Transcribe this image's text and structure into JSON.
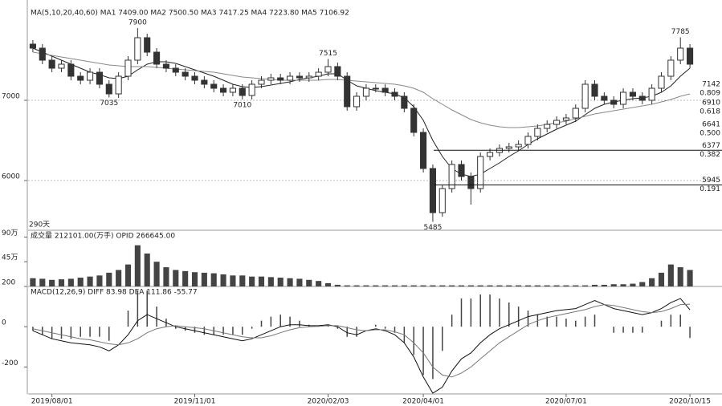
{
  "chart_data": [
    {
      "type": "candlestick",
      "title": "MA(5,10,20,40,60)  MA1 7409.00  MA2 7500.50  MA3 7417.25  MA4 7223.80  MA5 7106.92",
      "subtitle": "290天",
      "open": [
        7700,
        7650,
        7500,
        7400,
        7450,
        7300,
        7250,
        7350,
        7200,
        7080,
        7300,
        7500,
        7780,
        7600,
        7450,
        7400,
        7350,
        7300,
        7250,
        7200,
        7150,
        7100,
        7150,
        7060,
        7200,
        7250,
        7280,
        7250,
        7300,
        7280,
        7300,
        7350,
        7420,
        7300,
        6920,
        7050,
        7150,
        7150,
        7100,
        7050,
        6900,
        6600,
        6150,
        5600,
        5900,
        6200,
        6050,
        5900,
        6300,
        6350,
        6400,
        6420,
        6450,
        6550,
        6650,
        6700,
        6750,
        6780,
        6900,
        7200,
        7050,
        7000,
        6950,
        7100,
        7050,
        7000,
        7150,
        7300,
        7500,
        7650
      ],
      "high": [
        7750,
        7700,
        7550,
        7500,
        7500,
        7350,
        7400,
        7400,
        7250,
        7350,
        7550,
        7900,
        7830,
        7650,
        7500,
        7450,
        7400,
        7350,
        7300,
        7250,
        7200,
        7200,
        7200,
        7250,
        7300,
        7330,
        7330,
        7350,
        7350,
        7350,
        7400,
        7515,
        7470,
        7350,
        7100,
        7200,
        7200,
        7200,
        7150,
        7100,
        6950,
        6650,
        6200,
        5950,
        6250,
        6250,
        6100,
        6350,
        6400,
        6450,
        6470,
        6500,
        6600,
        6700,
        6750,
        6800,
        6830,
        6950,
        7250,
        7250,
        7100,
        7050,
        7150,
        7150,
        7100,
        7200,
        7350,
        7550,
        7785,
        7700
      ],
      "low": [
        7600,
        7450,
        7350,
        7350,
        7250,
        7200,
        7200,
        7150,
        7035,
        7030,
        7250,
        7450,
        7550,
        7400,
        7350,
        7300,
        7250,
        7200,
        7150,
        7100,
        7050,
        7050,
        7010,
        7010,
        7150,
        7200,
        7200,
        7200,
        7230,
        7230,
        7250,
        7300,
        7250,
        6870,
        6870,
        7000,
        7100,
        7050,
        7000,
        6850,
        6550,
        6100,
        5485,
        5550,
        5850,
        6000,
        5700,
        5850,
        6250,
        6300,
        6350,
        6370,
        6400,
        6500,
        6600,
        6650,
        6700,
        6730,
        6850,
        7000,
        6950,
        6900,
        6900,
        7000,
        6950,
        6950,
        7100,
        7250,
        7450,
        7400
      ],
      "close": [
        7650,
        7500,
        7400,
        7450,
        7300,
        7250,
        7350,
        7200,
        7080,
        7300,
        7500,
        7780,
        7600,
        7450,
        7400,
        7350,
        7300,
        7250,
        7200,
        7150,
        7100,
        7150,
        7060,
        7200,
        7250,
        7280,
        7250,
        7300,
        7280,
        7300,
        7350,
        7420,
        7300,
        6920,
        7050,
        7150,
        7150,
        7100,
        7050,
        6900,
        6600,
        6150,
        5600,
        5900,
        6200,
        6050,
        5900,
        6300,
        6350,
        6400,
        6420,
        6450,
        6550,
        6650,
        6700,
        6750,
        6780,
        6900,
        7200,
        7050,
        7000,
        6950,
        7100,
        7050,
        7000,
        7150,
        7300,
        7500,
        7650,
        7450
      ],
      "up_color": "#333333",
      "down_color": "#333333",
      "series": [
        {
          "color": "#222222",
          "values": [
            7650,
            7600,
            7550,
            7500,
            7450,
            7400,
            7350,
            7320,
            7280,
            7270,
            7300,
            7380,
            7450,
            7480,
            7480,
            7460,
            7420,
            7380,
            7340,
            7300,
            7250,
            7200,
            7170,
            7160,
            7170,
            7190,
            7210,
            7230,
            7260,
            7280,
            7300,
            7330,
            7330,
            7250,
            7180,
            7150,
            7120,
            7100,
            7080,
            7030,
            6920,
            6750,
            6500,
            6300,
            6150,
            6080,
            6050,
            6080,
            6150,
            6220,
            6300,
            6370,
            6450,
            6520,
            6580,
            6640,
            6690,
            6740,
            6820,
            6900,
            6950,
            6980,
            7000,
            7020,
            7030,
            7050,
            7100,
            7180,
            7300,
            7400
          ]
        },
        {
          "color": "#888888",
          "values": [
            7600,
            7580,
            7560,
            7540,
            7520,
            7500,
            7480,
            7460,
            7440,
            7430,
            7420,
            7420,
            7420,
            7410,
            7400,
            7390,
            7380,
            7370,
            7360,
            7350,
            7330,
            7310,
            7290,
            7280,
            7270,
            7260,
            7250,
            7250,
            7250,
            7250,
            7250,
            7260,
            7260,
            7250,
            7240,
            7230,
            7220,
            7210,
            7200,
            7180,
            7150,
            7100,
            7020,
            6950,
            6880,
            6820,
            6760,
            6720,
            6690,
            6670,
            6660,
            6660,
            6670,
            6680,
            6700,
            6720,
            6740,
            6770,
            6800,
            6830,
            6850,
            6870,
            6890,
            6910,
            6930,
            6950,
            6980,
            7010,
            7050,
            7080
          ]
        }
      ],
      "annotations": [
        {
          "x": 11,
          "value": 7900
        },
        {
          "x": 8,
          "value": 7035
        },
        {
          "x": 22,
          "value": 7010
        },
        {
          "x": 31,
          "value": 7515
        },
        {
          "x": 42,
          "value": 5485
        },
        {
          "x": 68,
          "value": 7785
        }
      ],
      "levels": [
        {
          "price": 7142,
          "ratio": "0.809"
        },
        {
          "price": 6910,
          "ratio": "0.618"
        },
        {
          "price": 6641,
          "ratio": "0.500"
        },
        {
          "price": 6377,
          "ratio": "0.382"
        },
        {
          "price": 5945,
          "ratio": "0.191"
        }
      ],
      "ylim": [
        5400,
        8150
      ],
      "yticks": [
        6000,
        7000
      ],
      "grid": true
    },
    {
      "type": "bar",
      "title": "成交量 212101.00(万手)  OPID 266645.00",
      "values": [
        15,
        14,
        12,
        13,
        14,
        16,
        18,
        20,
        25,
        30,
        40,
        75,
        60,
        45,
        35,
        30,
        28,
        26,
        25,
        24,
        22,
        20,
        20,
        18,
        18,
        17,
        16,
        15,
        14,
        12,
        10,
        6,
        3,
        2,
        2,
        2,
        2,
        2,
        2,
        2,
        2,
        2,
        2,
        2,
        2,
        2,
        2,
        2,
        2,
        2,
        2,
        2,
        2,
        2,
        2,
        2,
        2,
        2,
        2,
        3,
        3,
        4,
        4,
        5,
        8,
        15,
        25,
        40,
        35,
        30
      ],
      "color": "#444444",
      "ylim": [
        0,
        95
      ],
      "yticks": [
        {
          "value": 45,
          "label": "45万"
        },
        {
          "value": 90,
          "label": "90万"
        }
      ]
    },
    {
      "type": "macd",
      "title": "MACD(12,26,9)  DIFF 83.98  DEA 111.86  -55.77",
      "categories": [
        null,
        null,
        "2019/08/01",
        null,
        null,
        null,
        null,
        null,
        null,
        null,
        null,
        null,
        null,
        null,
        null,
        null,
        null,
        "2019/11/01",
        null,
        null,
        null,
        null,
        null,
        null,
        null,
        null,
        null,
        null,
        null,
        null,
        null,
        "2020/02/03",
        null,
        null,
        null,
        null,
        null,
        null,
        null,
        null,
        null,
        "2020/04/01",
        null,
        null,
        null,
        null,
        null,
        null,
        null,
        null,
        null,
        null,
        null,
        null,
        null,
        null,
        "2020/07/01",
        null,
        null,
        null,
        null,
        null,
        null,
        null,
        null,
        null,
        null,
        null,
        null,
        "2020/10/15"
      ],
      "values": [
        -20,
        -40,
        -60,
        -60,
        -60,
        -50,
        -50,
        -50,
        -70,
        0,
        80,
        180,
        180,
        100,
        40,
        -10,
        -20,
        -30,
        -40,
        -40,
        -40,
        -40,
        -40,
        -10,
        30,
        50,
        60,
        50,
        30,
        10,
        6,
        10,
        -10,
        -50,
        -50,
        0,
        10,
        -10,
        -30,
        -80,
        -140,
        -240,
        -260,
        -120,
        60,
        140,
        140,
        160,
        160,
        140,
        120,
        100,
        80,
        60,
        50,
        50,
        40,
        30,
        50,
        60,
        0,
        -30,
        -30,
        -30,
        -30,
        0,
        30,
        60,
        60,
        -56
      ],
      "color": "#444444",
      "series": [
        {
          "color": "#111111",
          "values": [
            -20,
            -40,
            -60,
            -70,
            -80,
            -85,
            -90,
            -100,
            -120,
            -90,
            -40,
            30,
            60,
            40,
            20,
            0,
            -10,
            -20,
            -30,
            -40,
            -50,
            -60,
            -70,
            -60,
            -40,
            -20,
            0,
            10,
            10,
            5,
            5,
            10,
            0,
            -30,
            -40,
            -20,
            -10,
            -20,
            -40,
            -80,
            -150,
            -250,
            -330,
            -300,
            -220,
            -160,
            -130,
            -80,
            -40,
            -10,
            10,
            30,
            50,
            60,
            70,
            80,
            85,
            90,
            110,
            130,
            110,
            90,
            80,
            70,
            60,
            70,
            90,
            120,
            140,
            84
          ]
        },
        {
          "color": "#777777",
          "values": [
            -10,
            -20,
            -30,
            -40,
            -50,
            -60,
            -65,
            -75,
            -85,
            -90,
            -80,
            -60,
            -30,
            -10,
            0,
            5,
            0,
            -5,
            -10,
            -20,
            -30,
            -40,
            -50,
            -55,
            -55,
            -45,
            -30,
            -15,
            -5,
            0,
            2,
            5,
            5,
            -5,
            -15,
            -20,
            -15,
            -15,
            -25,
            -40,
            -80,
            -130,
            -200,
            -240,
            -250,
            -230,
            -200,
            -160,
            -120,
            -80,
            -50,
            -20,
            10,
            30,
            45,
            55,
            65,
            75,
            85,
            100,
            110,
            105,
            95,
            85,
            75,
            70,
            75,
            90,
            110,
            112
          ]
        }
      ],
      "ylim": [
        -330,
        200
      ],
      "yticks": [
        -200,
        0,
        200
      ]
    }
  ]
}
